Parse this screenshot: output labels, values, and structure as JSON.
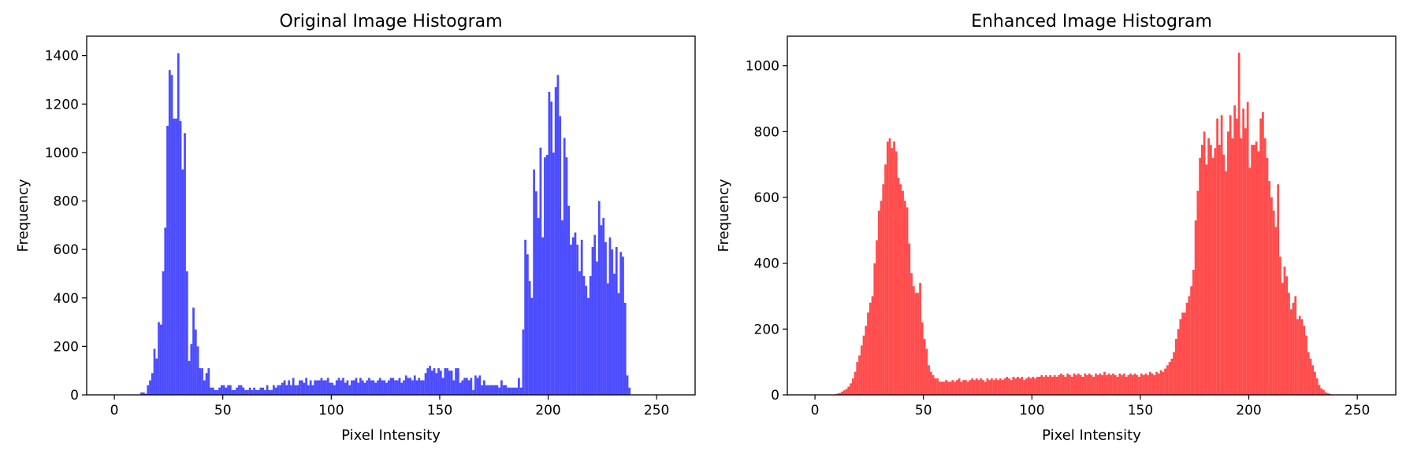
{
  "chart_data": [
    {
      "type": "bar",
      "title": "Original Image Histogram",
      "xlabel": "Pixel Intensity",
      "ylabel": "Frequency",
      "xlim": [
        -12.75,
        267.75
      ],
      "ylim": [
        0,
        1480
      ],
      "xticks": [
        0,
        50,
        100,
        150,
        200,
        250
      ],
      "yticks": [
        0,
        200,
        400,
        600,
        800,
        1000,
        1200,
        1400
      ],
      "color": "#0000ff",
      "alpha": 0.7,
      "bin_start": 0,
      "bin_width": 1,
      "values": [
        0,
        0,
        0,
        0,
        0,
        0,
        0,
        0,
        0,
        0,
        0,
        0,
        10,
        10,
        5,
        40,
        60,
        90,
        190,
        150,
        300,
        290,
        510,
        690,
        1110,
        1340,
        1320,
        1140,
        1140,
        1410,
        1130,
        930,
        1080,
        510,
        140,
        210,
        360,
        270,
        200,
        110,
        110,
        60,
        90,
        110,
        30,
        30,
        20,
        20,
        30,
        40,
        40,
        30,
        40,
        40,
        20,
        20,
        30,
        40,
        40,
        30,
        20,
        20,
        30,
        20,
        30,
        20,
        20,
        30,
        30,
        20,
        40,
        20,
        20,
        40,
        30,
        40,
        40,
        50,
        60,
        40,
        60,
        40,
        70,
        40,
        40,
        60,
        60,
        50,
        70,
        40,
        60,
        40,
        60,
        60,
        60,
        70,
        60,
        60,
        70,
        50,
        50,
        40,
        60,
        70,
        60,
        70,
        50,
        60,
        40,
        60,
        60,
        70,
        50,
        70,
        60,
        50,
        60,
        70,
        60,
        60,
        50,
        60,
        70,
        60,
        60,
        50,
        60,
        70,
        70,
        60,
        60,
        70,
        50,
        60,
        80,
        70,
        70,
        60,
        80,
        60,
        70,
        60,
        60,
        90,
        110,
        120,
        100,
        110,
        90,
        110,
        100,
        70,
        110,
        110,
        100,
        100,
        60,
        110,
        110,
        50,
        60,
        70,
        70,
        60,
        70,
        20,
        80,
        70,
        80,
        40,
        60,
        40,
        40,
        40,
        40,
        40,
        40,
        30,
        60,
        40,
        40,
        30,
        30,
        30,
        30,
        30,
        70,
        30,
        270,
        640,
        580,
        470,
        400,
        930,
        840,
        730,
        1020,
        650,
        980,
        990,
        1250,
        1210,
        1000,
        1270,
        1320,
        1150,
        720,
        1060,
        980,
        780,
        620,
        650,
        670,
        620,
        510,
        640,
        490,
        450,
        400,
        490,
        610,
        660,
        550,
        800,
        700,
        730,
        630,
        460,
        650,
        600,
        500,
        610,
        420,
        590,
        570,
        380,
        80,
        30
      ],
      "data_note": ""
    },
    {
      "type": "bar",
      "title": "Enhanced Image Histogram",
      "xlabel": "Pixel Intensity",
      "ylabel": "Frequency",
      "xlim": [
        -12.75,
        267.75
      ],
      "ylim": [
        0,
        1090
      ],
      "xticks": [
        0,
        50,
        100,
        150,
        200,
        250
      ],
      "yticks": [
        0,
        200,
        400,
        600,
        800,
        1000
      ],
      "color": "#ff0000",
      "alpha": 0.7,
      "bin_start": 0,
      "bin_width": 1,
      "values": [
        0,
        0,
        0,
        0,
        0,
        0,
        0,
        0,
        0,
        2,
        4,
        6,
        10,
        14,
        18,
        25,
        35,
        50,
        70,
        100,
        120,
        150,
        180,
        210,
        250,
        280,
        300,
        400,
        470,
        560,
        590,
        640,
        700,
        770,
        780,
        750,
        770,
        740,
        660,
        640,
        620,
        590,
        570,
        460,
        370,
        330,
        310,
        310,
        340,
        220,
        170,
        140,
        90,
        70,
        60,
        50,
        50,
        40,
        40,
        40,
        45,
        40,
        40,
        45,
        40,
        45,
        50,
        40,
        45,
        45,
        40,
        45,
        50,
        45,
        50,
        45,
        50,
        45,
        40,
        50,
        45,
        50,
        45,
        50,
        45,
        50,
        45,
        50,
        55,
        50,
        45,
        55,
        50,
        55,
        50,
        55,
        45,
        50,
        55,
        50,
        55,
        50,
        55,
        55,
        60,
        55,
        60,
        55,
        60,
        55,
        60,
        55,
        60,
        65,
        60,
        55,
        65,
        60,
        55,
        65,
        60,
        65,
        60,
        55,
        65,
        60,
        65,
        60,
        55,
        65,
        60,
        65,
        60,
        70,
        60,
        65,
        60,
        65,
        60,
        55,
        65,
        60,
        65,
        55,
        60,
        65,
        60,
        65,
        60,
        55,
        65,
        60,
        65,
        60,
        70,
        65,
        60,
        70,
        65,
        75,
        70,
        80,
        90,
        100,
        110,
        130,
        170,
        200,
        230,
        250,
        250,
        280,
        300,
        330,
        380,
        530,
        620,
        720,
        760,
        800,
        700,
        780,
        760,
        720,
        750,
        840,
        760,
        850,
        730,
        680,
        800,
        850,
        780,
        880,
        840,
        1040,
        780,
        870,
        810,
        890,
        690,
        760,
        760,
        770,
        740,
        840,
        860,
        780,
        720,
        650,
        600,
        560,
        510,
        640,
        420,
        340,
        390,
        360,
        310,
        260,
        280,
        300,
        230,
        240,
        230,
        210,
        180,
        130,
        110,
        90,
        70,
        50,
        30,
        20,
        15,
        8,
        5,
        3,
        0,
        0,
        0,
        0,
        0,
        0,
        0,
        0
      ],
      "data_note": ""
    }
  ]
}
